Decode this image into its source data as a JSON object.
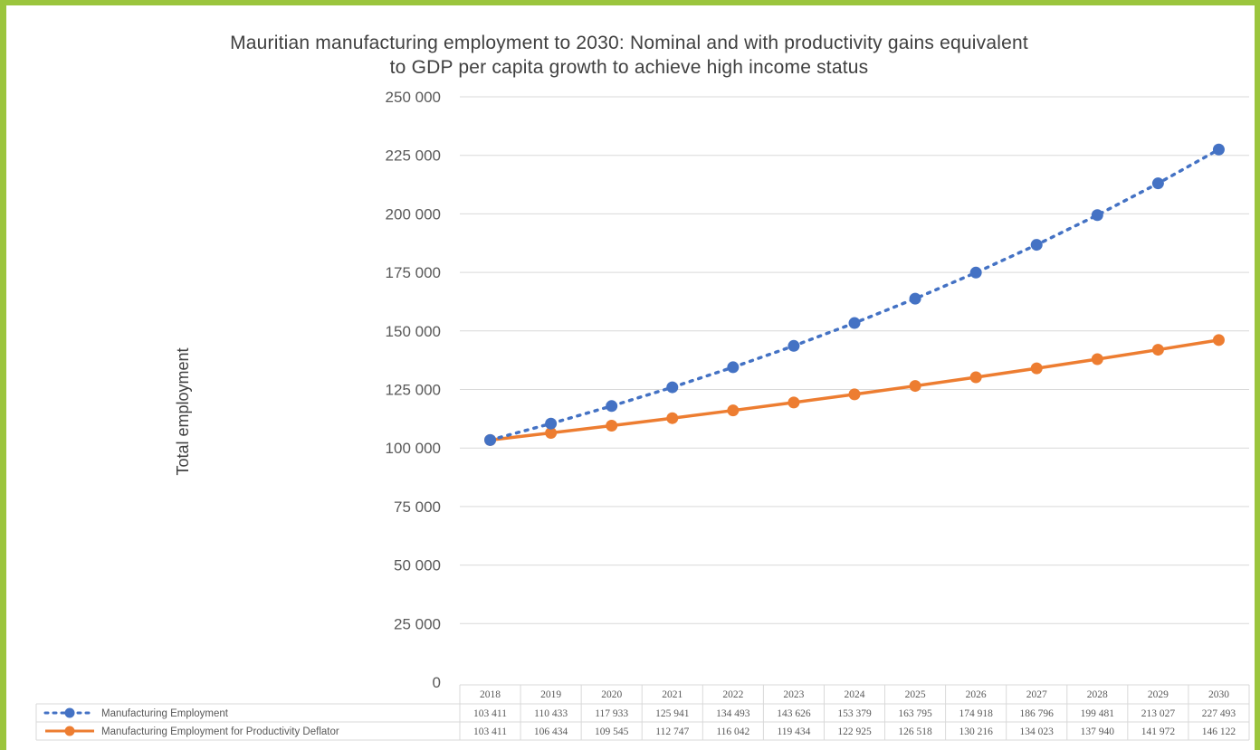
{
  "chart_data": {
    "type": "line",
    "title_line1": "Mauritian manufacturing employment to 2030: Nominal and with productivity gains equivalent",
    "title_line2": "to GDP per capita growth to achieve high income status",
    "ylabel": "Total employment",
    "xlabel": "",
    "ylim": [
      0,
      250000
    ],
    "y_ticks": [
      "0",
      "25 000",
      "50 000",
      "75 000",
      "100 000",
      "125 000",
      "150 000",
      "175 000",
      "200 000",
      "225 000",
      "250 000"
    ],
    "grid": true,
    "legend": "data-table",
    "x": [
      "2018",
      "2019",
      "2020",
      "2021",
      "2022",
      "2023",
      "2024",
      "2025",
      "2026",
      "2027",
      "2028",
      "2029",
      "2030"
    ],
    "series": [
      {
        "name": "Manufacturing Employment",
        "color": "#4472c4",
        "style": "dotted",
        "values": [
          103411,
          110433,
          117933,
          125941,
          134493,
          143626,
          153379,
          163795,
          174918,
          186796,
          199481,
          213027,
          227493
        ],
        "labels": [
          "103 411",
          "110 433",
          "117 933",
          "125 941",
          "134 493",
          "143 626",
          "153 379",
          "163 795",
          "174 918",
          "186 796",
          "199 481",
          "213 027",
          "227 493"
        ]
      },
      {
        "name": "Manufacturing Employment for Productivity Deflator",
        "color": "#ed7d31",
        "style": "solid",
        "values": [
          103411,
          106434,
          109545,
          112747,
          116042,
          119434,
          122925,
          126518,
          130216,
          134023,
          137940,
          141972,
          146122
        ],
        "labels": [
          "103 411",
          "106 434",
          "109 545",
          "112 747",
          "116 042",
          "119 434",
          "122 925",
          "126 518",
          "130 216",
          "134 023",
          "137 940",
          "141 972",
          "146 122"
        ]
      }
    ]
  }
}
